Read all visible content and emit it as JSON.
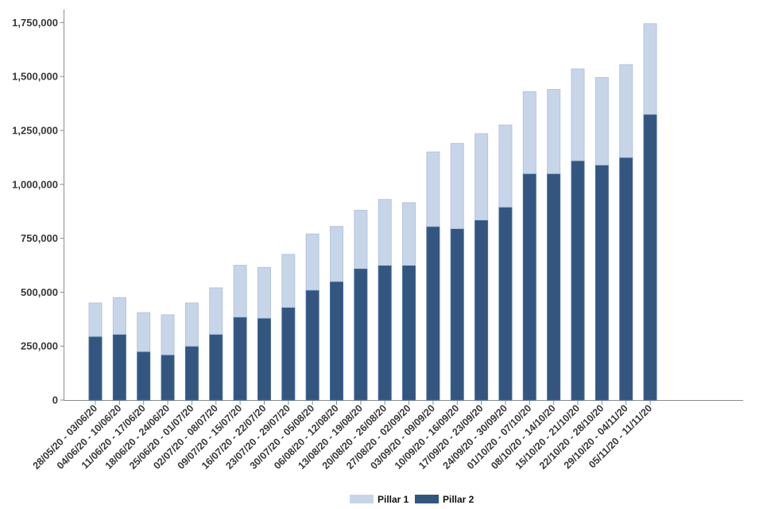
{
  "chart_data": {
    "type": "bar",
    "stacked": true,
    "title": "",
    "xlabel": "",
    "ylabel": "",
    "grid": false,
    "legend_position": "bottom",
    "ylim": [
      0,
      1750000
    ],
    "ytick_step": 250000,
    "ytick_labels": [
      "0",
      "250,000",
      "500,000",
      "750,000",
      "1,000,000",
      "1,250,000",
      "1,500,000",
      "1,750,000"
    ],
    "categories": [
      "28/05/20 - 03/06/20",
      "04/06/20 - 10/06/20",
      "11/06/20 - 17/06/20",
      "18/06/20 - 24/06/20",
      "25/06/20 - 01/07/20",
      "02/07/20 - 08/07/20",
      "09/07/20 - 15/07/20",
      "16/07/20 - 22/07/20",
      "23/07/20 - 29/07/20",
      "30/07/20 - 05/08/20",
      "06/08/20 - 12/08/20",
      "13/08/20 - 19/08/20",
      "20/08/20 - 26/08/20",
      "27/08/20 - 02/09/20",
      "03/09/20 - 09/09/20",
      "10/09/20 - 16/09/20",
      "17/09/20 - 23/09/20",
      "24/09/20 - 30/09/20",
      "01/10/20 - 07/10/20",
      "08/10/20 - 14/10/20",
      "15/10/20 - 21/10/20",
      "22/10/20 - 28/10/20",
      "29/10/20 - 04/11/20",
      "05/11/20 - 11/11/20"
    ],
    "stack_order_bottom_to_top": [
      "Pillar 2",
      "Pillar 1"
    ],
    "series": [
      {
        "name": "Pillar 1",
        "color": "#c7d5e9",
        "border_color": "#b3c5de",
        "values": [
          155000,
          170000,
          180000,
          185000,
          200000,
          215000,
          240000,
          235000,
          245000,
          260000,
          255000,
          270000,
          305000,
          290000,
          345000,
          395000,
          400000,
          380000,
          380000,
          390000,
          425000,
          405000,
          430000,
          420000
        ]
      },
      {
        "name": "Pillar 2",
        "color": "#325680",
        "border_color": "#46699a",
        "values": [
          295000,
          305000,
          225000,
          210000,
          250000,
          305000,
          385000,
          380000,
          430000,
          510000,
          550000,
          610000,
          625000,
          625000,
          805000,
          795000,
          835000,
          895000,
          1050000,
          1050000,
          1110000,
          1090000,
          1125000,
          1325000
        ]
      }
    ]
  }
}
